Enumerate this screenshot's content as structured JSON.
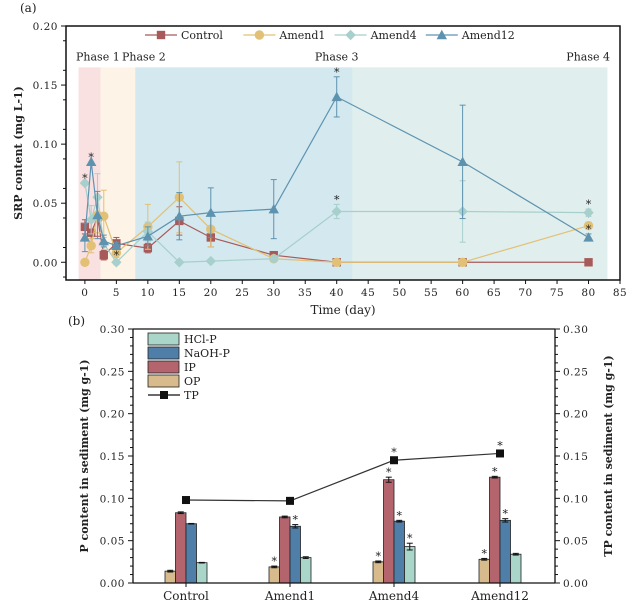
{
  "chart_data": [
    {
      "panel_label": "(a)",
      "type": "line",
      "xlabel": "Time (day)",
      "ylabel": "SRP content (mg L-1)",
      "xlim": [
        -3,
        85
      ],
      "ylim": [
        -0.015,
        0.2
      ],
      "xticks": [
        0,
        5,
        10,
        15,
        20,
        25,
        30,
        35,
        40,
        45,
        50,
        55,
        60,
        65,
        70,
        75,
        80,
        85
      ],
      "yticks": [
        "0.00",
        "0.05",
        "0.10",
        "0.15",
        "0.20"
      ],
      "legend_position": "top-center",
      "phases": [
        {
          "label": "Phase 1",
          "x_start": -1,
          "x_end": 2.5,
          "color": "#f9e1e1"
        },
        {
          "label": "Phase 2",
          "x_start": 2.5,
          "x_end": 8,
          "color": "#fdf3e6"
        },
        {
          "label": "Phase 3",
          "x_start": 8,
          "x_end": 42.5,
          "color": "#d3e8ef"
        },
        {
          "label": "Phase 4",
          "x_start": 42.5,
          "x_end": 83,
          "color": "#e0efed"
        }
      ],
      "series": [
        {
          "name": "Control",
          "marker": "square",
          "color": "#a85a5a",
          "x": [
            0,
            1,
            2,
            3,
            5,
            10,
            15,
            20,
            30,
            40,
            60,
            80
          ],
          "y": [
            0.03,
            0.025,
            0.038,
            0.006,
            0.016,
            0.012,
            0.035,
            0.021,
            0.006,
            0.0,
            0.0,
            0.0
          ],
          "err": [
            0.006,
            0.01,
            0.016,
            0.004,
            0.005,
            0.004,
            0.012,
            0.008,
            0.003,
            0.0,
            0.0,
            0.0
          ],
          "sig": []
        },
        {
          "name": "Amend1",
          "marker": "circle",
          "color": "#e2c075",
          "x": [
            0,
            1,
            2,
            3,
            5,
            10,
            15,
            20,
            30,
            40,
            60,
            80
          ],
          "y": [
            0.0,
            0.014,
            0.04,
            0.039,
            0.008,
            0.03,
            0.055,
            0.028,
            0.003,
            0.0,
            0.0,
            0.031
          ],
          "err": [
            0.0,
            0.006,
            0.015,
            0.022,
            0.004,
            0.019,
            0.03,
            0.015,
            0.002,
            0.0,
            0.0,
            0.003
          ],
          "sig": [
            80
          ]
        },
        {
          "name": "Amend4",
          "marker": "diamond",
          "color": "#a7cfcc",
          "x": [
            0,
            1,
            2,
            3,
            5,
            10,
            15,
            20,
            30,
            40,
            60,
            80
          ],
          "y": [
            0.067,
            0.036,
            0.055,
            0.016,
            0.0,
            0.026,
            0.0,
            0.001,
            0.003,
            0.043,
            0.043,
            0.042
          ],
          "err": [
            0.0,
            0.012,
            0.02,
            0.005,
            0.002,
            0.008,
            0.0,
            0.0,
            0.001,
            0.006,
            0.026,
            0.003
          ],
          "sig": [
            0,
            5,
            40,
            80
          ]
        },
        {
          "name": "Amend12",
          "marker": "triangle",
          "color": "#5e93b0",
          "x": [
            0,
            1,
            2,
            3,
            5,
            10,
            15,
            20,
            30,
            40,
            60,
            80
          ],
          "y": [
            0.021,
            0.085,
            0.04,
            0.018,
            0.014,
            0.022,
            0.039,
            0.042,
            0.045,
            0.14,
            0.085,
            0.021
          ],
          "err": [
            0.012,
            0.0,
            0.02,
            0.005,
            0.003,
            0.008,
            0.02,
            0.021,
            0.025,
            0.017,
            0.048,
            0.003
          ],
          "sig": [
            1,
            40,
            80
          ]
        }
      ]
    },
    {
      "panel_label": "(b)",
      "type": "bar",
      "xlabel": "",
      "ylabel": "P content in sediment (mg g-1)",
      "ylabel_right": "TP content in sediment (mg g-1)",
      "ylim": [
        0,
        0.3
      ],
      "yticks": [
        "0.00",
        "0.05",
        "0.10",
        "0.15",
        "0.20",
        "0.25",
        "0.30"
      ],
      "yticks_right": [
        "0.00",
        "0.05",
        "0.10",
        "0.15",
        "0.20",
        "0.25",
        "0.30"
      ],
      "legend_position": "top-left",
      "categories": [
        "Control",
        "Amend1",
        "Amend4",
        "Amend12"
      ],
      "series": [
        {
          "name": "OP",
          "color": "#d8bb8c",
          "values": [
            0.014,
            0.019,
            0.025,
            0.028
          ],
          "err": [
            0.001,
            0.001,
            0.001,
            0.001
          ],
          "sig": [
            false,
            true,
            true,
            true
          ]
        },
        {
          "name": "IP",
          "color": "#b3646c",
          "values": [
            0.083,
            0.078,
            0.122,
            0.125
          ],
          "err": [
            0.001,
            0.001,
            0.003,
            0.001
          ],
          "sig": [
            false,
            false,
            true,
            true
          ]
        },
        {
          "name": "NaOH-P",
          "color": "#4f7fa8",
          "values": [
            0.07,
            0.067,
            0.073,
            0.074
          ],
          "err": [
            0.0,
            0.002,
            0.001,
            0.002
          ],
          "sig": [
            false,
            true,
            true,
            true
          ]
        },
        {
          "name": "HCl-P",
          "color": "#a9d6c9",
          "values": [
            0.024,
            0.03,
            0.043,
            0.034
          ],
          "err": [
            0.0,
            0.001,
            0.004,
            0.001
          ],
          "sig": [
            false,
            false,
            true,
            false
          ]
        }
      ],
      "line_series": {
        "name": "TP",
        "color": "#111111",
        "values": [
          0.098,
          0.097,
          0.145,
          0.153
        ],
        "sig": [
          false,
          false,
          true,
          true
        ]
      },
      "legend_order": [
        "HCl-P",
        "NaOH-P",
        "IP",
        "OP",
        "TP"
      ]
    }
  ]
}
